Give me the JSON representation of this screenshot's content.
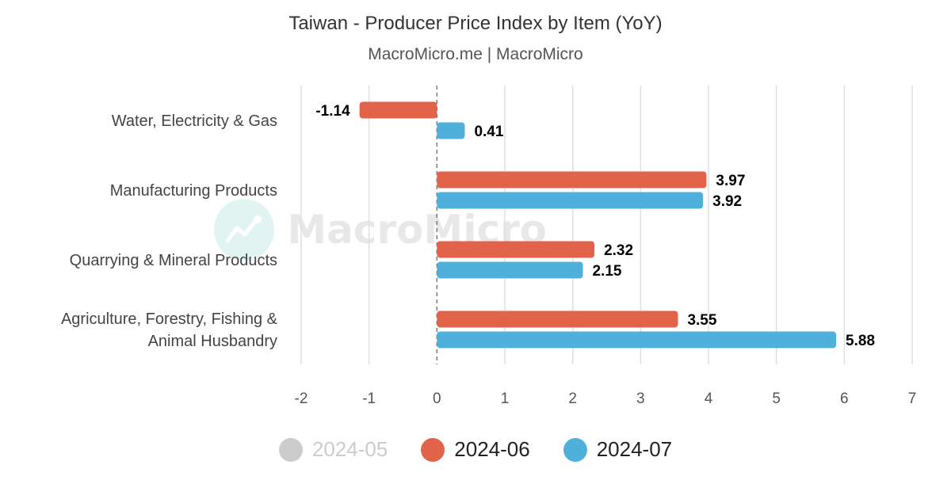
{
  "chart_data": {
    "type": "bar",
    "orientation": "horizontal",
    "title": "Taiwan - Producer Price Index by Item (YoY)",
    "subtitle": "MacroMicro.me | MacroMicro",
    "watermark": "MacroMicro",
    "categories": [
      [
        "Water, Electricity & Gas"
      ],
      [
        "Manufacturing Products"
      ],
      [
        "Quarrying & Mineral Products"
      ],
      [
        "Agriculture, Forestry, Fishing &",
        "Animal Husbandry"
      ]
    ],
    "series": [
      {
        "name": "2024-05",
        "color": "#cccccc",
        "visible": false,
        "values": [
          null,
          null,
          null,
          null
        ]
      },
      {
        "name": "2024-06",
        "color": "#e0634a",
        "visible": true,
        "values": [
          -1.14,
          3.97,
          2.32,
          3.55
        ]
      },
      {
        "name": "2024-07",
        "color": "#4fb0dc",
        "visible": true,
        "values": [
          0.41,
          3.92,
          2.15,
          5.88
        ]
      }
    ],
    "xlim": [
      -2,
      7
    ],
    "xticks": [
      -2,
      -1,
      0,
      1,
      2,
      3,
      4,
      5,
      6,
      7
    ],
    "grid": true,
    "legend_position": "bottom",
    "xlabel": "",
    "ylabel": ""
  }
}
